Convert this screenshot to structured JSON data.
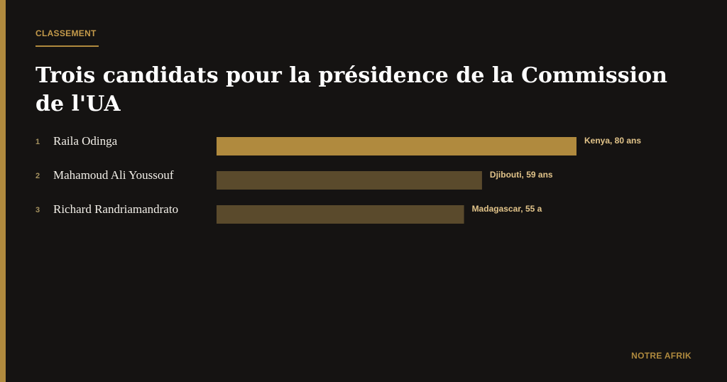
{
  "kicker": "CLASSEMENT",
  "title": "Trois candidats pour la présidence de la Commission de l'UA",
  "source": "NOTRE AFRIK",
  "colors": {
    "accent": "#b08a3e",
    "background": "#151312",
    "bar_highlight": "#b08a3e",
    "bar_muted": "#5a4a2c"
  },
  "chart_data": {
    "type": "bar",
    "orientation": "horizontal",
    "title": "Trois candidats pour la présidence de la Commission de l'UA",
    "xlabel": "",
    "ylabel": "",
    "grid": false,
    "xlim": [
      0,
      80
    ],
    "ranks": [
      "1",
      "2",
      "3"
    ],
    "categories": [
      "Raila Odinga",
      "Mahamoud Ali Youssouf",
      "Richard Randriamandrato"
    ],
    "values": [
      80,
      59,
      55
    ],
    "labels": [
      "Kenya, 80 ans",
      "Djibouti, 59 ans",
      "Madagascar, 55 a"
    ]
  }
}
